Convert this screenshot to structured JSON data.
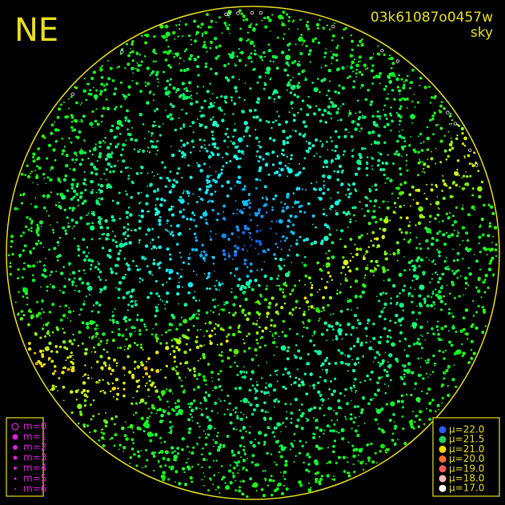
{
  "header": {
    "direction": "NE",
    "image_id": "03k61087o0457w",
    "mode": "sky"
  },
  "magnitude_legend": [
    "m=0",
    "m=1",
    "m=2",
    "m=3",
    "m=4",
    "m=5",
    "m=6"
  ],
  "brightness_legend": [
    {
      "label": "μ=22.0",
      "color": "#2a5cff"
    },
    {
      "label": "μ=21.5",
      "color": "#22d060"
    },
    {
      "label": "μ=21.0",
      "color": "#ffd800"
    },
    {
      "label": "μ=20.0",
      "color": "#ff7030"
    },
    {
      "label": "μ=19.0",
      "color": "#ff5858"
    },
    {
      "label": "μ=18.0",
      "color": "#ffb8b8"
    },
    {
      "label": "μ=17.0",
      "color": "#ffffff"
    }
  ]
}
